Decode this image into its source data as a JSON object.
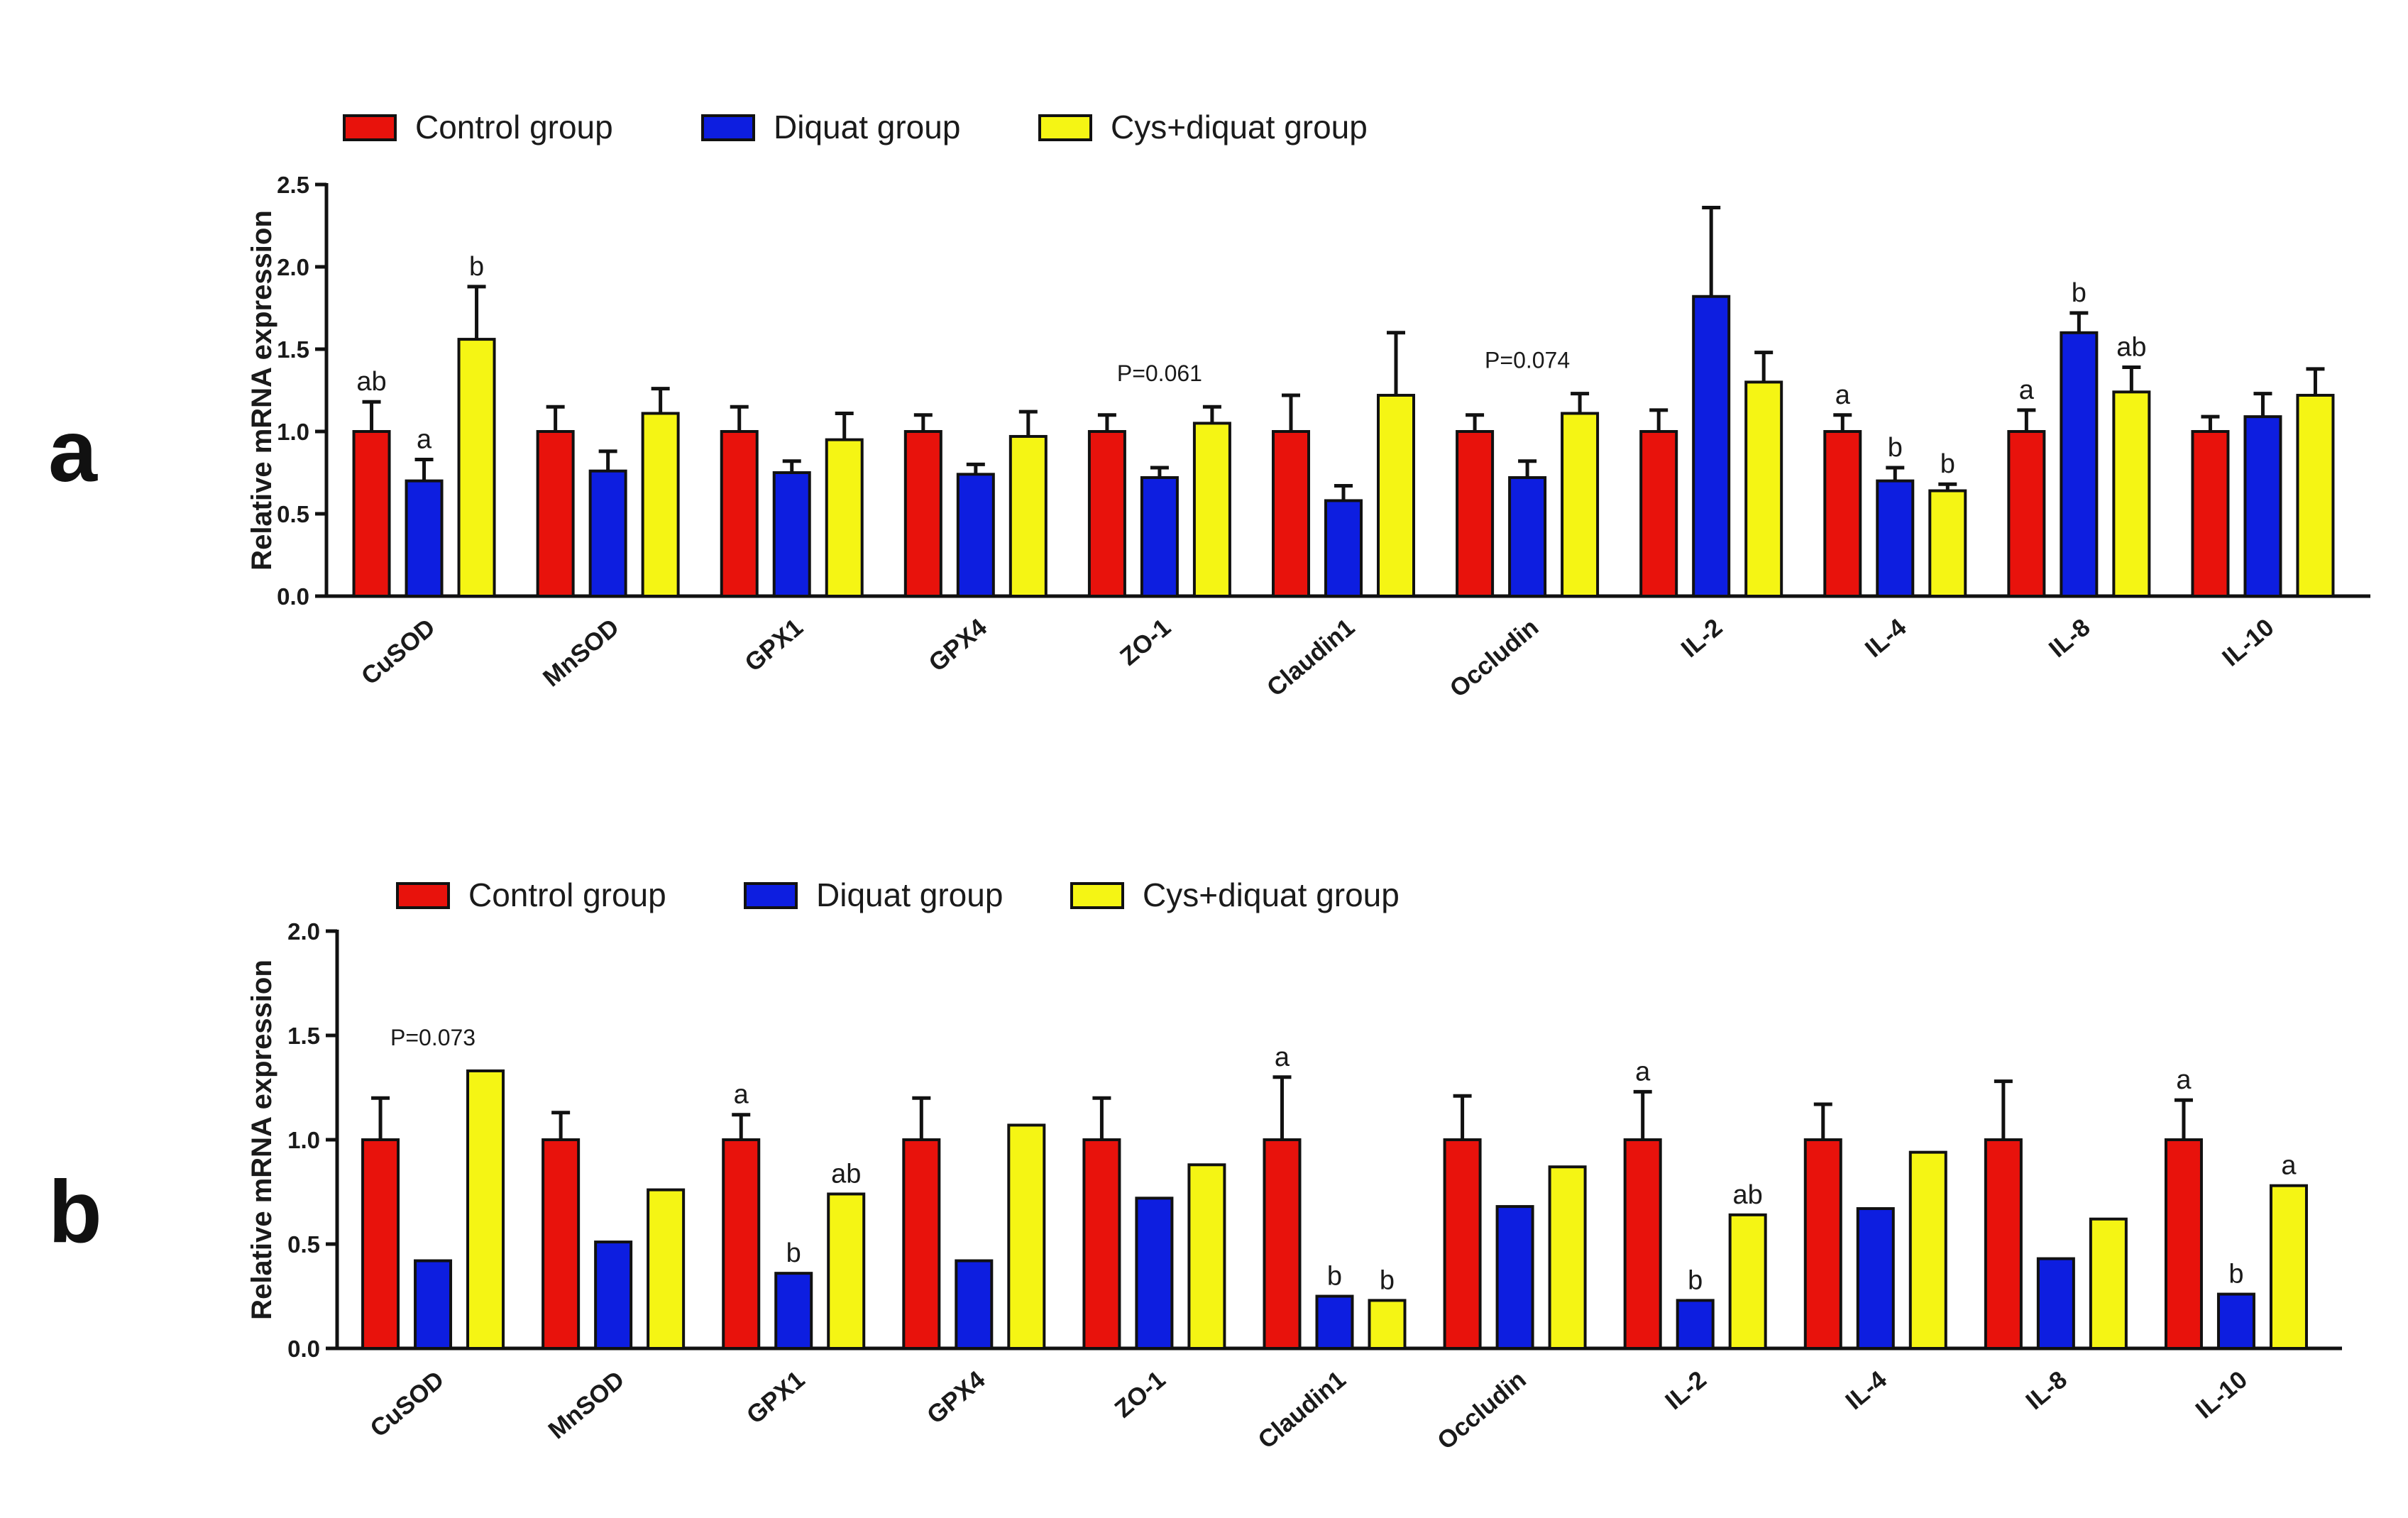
{
  "panel_labels": [
    "a",
    "b"
  ],
  "colors": {
    "Control group": "#e8120c",
    "Diquat group": "#0d1ee0",
    "Cys+diquat group": "#f5f514",
    "outline": "#111111"
  },
  "chart_data": [
    {
      "type": "bar",
      "panel": "a",
      "ylabel": "Relative mRNA expression",
      "ylim": [
        0,
        2.5
      ],
      "yticks": [
        "0.0",
        "0.5",
        "1.0",
        "1.5",
        "2.0",
        "2.5"
      ],
      "legend_position": "top-left",
      "categories": [
        "CuSOD",
        "MnSOD",
        "GPX1",
        "GPX4",
        "ZO-1",
        "Claudin1",
        "Occludin",
        "IL-2",
        "IL-4",
        "IL-8",
        "IL-10"
      ],
      "series": [
        {
          "name": "Control group",
          "values": [
            1.0,
            1.0,
            1.0,
            1.0,
            1.0,
            1.0,
            1.0,
            1.0,
            1.0,
            1.0,
            1.0
          ],
          "errors": [
            0.18,
            0.15,
            0.15,
            0.1,
            0.1,
            0.22,
            0.1,
            0.13,
            0.1,
            0.13,
            0.09
          ]
        },
        {
          "name": "Diquat group",
          "values": [
            0.7,
            0.76,
            0.75,
            0.74,
            0.72,
            0.58,
            0.72,
            1.82,
            0.7,
            1.6,
            1.09
          ],
          "errors": [
            0.13,
            0.12,
            0.07,
            0.06,
            0.06,
            0.09,
            0.1,
            0.54,
            0.08,
            0.12,
            0.14
          ]
        },
        {
          "name": "Cys+diquat group",
          "values": [
            1.56,
            1.11,
            0.95,
            0.97,
            1.05,
            1.22,
            1.11,
            1.3,
            0.64,
            1.24,
            1.22
          ],
          "errors": [
            0.32,
            0.15,
            0.16,
            0.15,
            0.1,
            0.38,
            0.12,
            0.18,
            0.04,
            0.15,
            0.16
          ]
        }
      ],
      "significance": [
        {
          "category": 0,
          "series": 0,
          "label": "ab"
        },
        {
          "category": 0,
          "series": 1,
          "label": "a"
        },
        {
          "category": 0,
          "series": 2,
          "label": "b"
        },
        {
          "category": 8,
          "series": 0,
          "label": "a"
        },
        {
          "category": 8,
          "series": 1,
          "label": "b"
        },
        {
          "category": 8,
          "series": 2,
          "label": "b"
        },
        {
          "category": 9,
          "series": 0,
          "label": "a"
        },
        {
          "category": 9,
          "series": 1,
          "label": "b"
        },
        {
          "category": 9,
          "series": 2,
          "label": "ab"
        }
      ],
      "pvalues": [
        {
          "category": 4,
          "label": "P=0.061"
        },
        {
          "category": 6,
          "label": "P=0.074"
        }
      ]
    },
    {
      "type": "bar",
      "panel": "b",
      "ylabel": "Relative mRNA expression",
      "ylim": [
        0,
        2.0
      ],
      "yticks": [
        "0.0",
        "0.5",
        "1.0",
        "1.5",
        "2.0"
      ],
      "legend_position": "top-left",
      "categories": [
        "CuSOD",
        "MnSOD",
        "GPX1",
        "GPX4",
        "ZO-1",
        "Claudin1",
        "Occludin",
        "IL-2",
        "IL-4",
        "IL-8",
        "IL-10"
      ],
      "series": [
        {
          "name": "Control group",
          "values": [
            1.0,
            1.0,
            1.0,
            1.0,
            1.0,
            1.0,
            1.0,
            1.0,
            1.0,
            1.0,
            1.0
          ],
          "errors": [
            0.2,
            0.13,
            0.12,
            0.2,
            0.2,
            0.3,
            0.21,
            0.23,
            0.17,
            0.28,
            0.19
          ]
        },
        {
          "name": "Diquat group",
          "values": [
            0.42,
            0.51,
            0.36,
            0.42,
            0.72,
            0.25,
            0.68,
            0.23,
            0.67,
            0.43,
            0.26
          ]
        },
        {
          "name": "Cys+diquat group",
          "values": [
            1.33,
            0.76,
            0.74,
            1.07,
            0.88,
            0.23,
            0.87,
            0.64,
            0.94,
            0.62,
            0.78
          ]
        }
      ],
      "significance": [
        {
          "category": 2,
          "series": 0,
          "label": "a"
        },
        {
          "category": 2,
          "series": 1,
          "label": "b"
        },
        {
          "category": 2,
          "series": 2,
          "label": "ab"
        },
        {
          "category": 5,
          "series": 0,
          "label": "a"
        },
        {
          "category": 5,
          "series": 1,
          "label": "b"
        },
        {
          "category": 5,
          "series": 2,
          "label": "b"
        },
        {
          "category": 7,
          "series": 0,
          "label": "a"
        },
        {
          "category": 7,
          "series": 1,
          "label": "b"
        },
        {
          "category": 7,
          "series": 2,
          "label": "ab"
        },
        {
          "category": 10,
          "series": 0,
          "label": "a"
        },
        {
          "category": 10,
          "series": 1,
          "label": "b"
        },
        {
          "category": 10,
          "series": 2,
          "label": "a"
        }
      ],
      "pvalues": [
        {
          "category": 0,
          "label": "P=0.073"
        }
      ]
    }
  ]
}
